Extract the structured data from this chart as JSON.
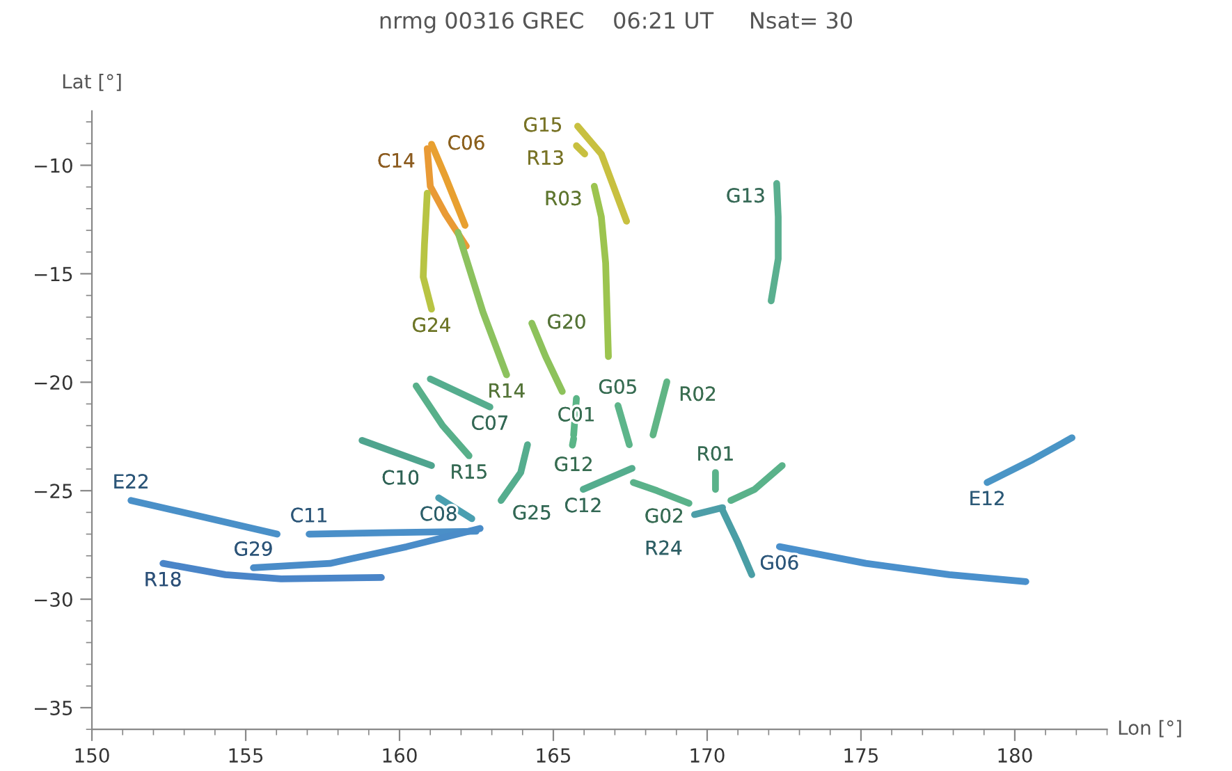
{
  "chart_data": {
    "type": "line",
    "title": "nrmg 00316 GREC    06:21 UT     Nsat= 30",
    "xlabel": "Lon [°]",
    "ylabel": "Lat [°]",
    "xlim": [
      150,
      183
    ],
    "ylim": [
      -36,
      -7.5
    ],
    "xticks": [
      150,
      155,
      160,
      165,
      170,
      175,
      180
    ],
    "yticks": [
      -35,
      -30,
      -25,
      -20,
      -15,
      -10
    ],
    "grid": false,
    "series": [
      {
        "name": "C06",
        "color": "#e8a030",
        "x": [
          161.04,
          161.49,
          162.13
        ],
        "values": [
          -9.03,
          -10.52,
          -12.77
        ]
      },
      {
        "name": "C14",
        "color": "#e99a35",
        "x": [
          160.9,
          161.0,
          161.49,
          162.17
        ],
        "values": [
          -9.23,
          -10.97,
          -12.25,
          -13.73
        ]
      },
      {
        "name": "G24",
        "color": "#b8c443",
        "x": [
          161.04,
          160.77,
          160.81,
          160.9
        ],
        "values": [
          -16.63,
          -15.15,
          -13.67,
          -11.29
        ]
      },
      {
        "name": "R14",
        "color": "#8cc25e",
        "x": [
          163.48,
          162.71,
          161.9
        ],
        "values": [
          -19.66,
          -16.76,
          -13.09
        ]
      },
      {
        "name": "G15",
        "color": "#c8c040",
        "x": [
          165.79,
          166.56,
          167.38
        ],
        "values": [
          -8.2,
          -9.48,
          -12.58
        ]
      },
      {
        "name": "R13",
        "color": "#c8c040",
        "x": [
          165.75,
          166.02
        ],
        "values": [
          -9.1,
          -9.48
        ]
      },
      {
        "name": "R03",
        "color": "#9cc44f",
        "x": [
          166.33,
          166.56,
          166.7,
          166.79
        ],
        "values": [
          -10.97,
          -12.38,
          -14.51,
          -18.82
        ]
      },
      {
        "name": "G13",
        "color": "#5aaf8f",
        "x": [
          172.26,
          172.31,
          172.31,
          172.08
        ],
        "values": [
          -10.84,
          -12.38,
          -14.31,
          -16.25
        ]
      },
      {
        "name": "G20",
        "color": "#8dc25b",
        "x": [
          164.3,
          164.75,
          165.29
        ],
        "values": [
          -17.28,
          -18.82,
          -20.43
        ]
      },
      {
        "name": "R02",
        "color": "#60b585",
        "x": [
          168.69,
          168.24
        ],
        "values": [
          -19.98,
          -22.43
        ]
      },
      {
        "name": "C01",
        "color": "#5bb587",
        "x": [
          165.75,
          165.66
        ],
        "values": [
          -20.75,
          -22.43
        ]
      },
      {
        "name": "G05",
        "color": "#5db58a",
        "x": [
          167.1,
          167.47
        ],
        "values": [
          -21.08,
          -22.88
        ]
      },
      {
        "name": "G12",
        "color": "#5bb587",
        "x": [
          165.66,
          165.62
        ],
        "values": [
          -22.6,
          -22.9
        ]
      },
      {
        "name": "C07",
        "color": "#55ad8e",
        "x": [
          162.94,
          161.0
        ],
        "values": [
          -21.14,
          -19.85
        ]
      },
      {
        "name": "R15",
        "color": "#58b08a",
        "x": [
          162.26,
          161.4,
          160.54
        ],
        "values": [
          -23.39,
          -22.0,
          -20.17
        ]
      },
      {
        "name": "C10",
        "color": "#4fa48e",
        "x": [
          161.04,
          158.78
        ],
        "values": [
          -23.84,
          -22.68
        ]
      },
      {
        "name": "C08",
        "color": "#4a9fb0",
        "x": [
          161.27,
          162.35
        ],
        "values": [
          -25.33,
          -26.29
        ]
      },
      {
        "name": "G25",
        "color": "#55ad8e",
        "x": [
          163.3,
          163.94,
          164.16
        ],
        "values": [
          -25.45,
          -24.16,
          -22.88
        ]
      },
      {
        "name": "E22",
        "color": "#4a90c8",
        "x": [
          151.27,
          153.67,
          156.02
        ],
        "values": [
          -25.45,
          -26.23,
          -27.0
        ]
      },
      {
        "name": "C11",
        "color": "#4a8fc8",
        "x": [
          157.06,
          159.77,
          162.49
        ],
        "values": [
          -27.0,
          -26.93,
          -26.87
        ]
      },
      {
        "name": "G29",
        "color": "#4a8cc8",
        "x": [
          155.25,
          157.74,
          160.23,
          162.62
        ],
        "values": [
          -28.55,
          -28.35,
          -27.58,
          -26.74
        ]
      },
      {
        "name": "R18",
        "color": "#4a85c8",
        "x": [
          152.31,
          154.34,
          156.15,
          159.41
        ],
        "values": [
          -28.35,
          -28.87,
          -29.06,
          -29.0
        ]
      },
      {
        "name": "C12",
        "color": "#55ad8e",
        "x": [
          165.97,
          167.56
        ],
        "values": [
          -24.94,
          -23.97
        ]
      },
      {
        "name": "G02",
        "color": "#5ab28a",
        "x": [
          167.6,
          168.37,
          169.41
        ],
        "values": [
          -24.62,
          -25.0,
          -25.58
        ]
      },
      {
        "name": "R01",
        "color": "#5ab28a",
        "x": [
          170.27,
          170.27
        ],
        "values": [
          -24.16,
          -24.94
        ]
      },
      {
        "color": "#5ab28a",
        "x": [
          170.77,
          171.54,
          172.44
        ],
        "values": [
          -25.45,
          -24.94,
          -23.84
        ]
      },
      {
        "name": "R24",
        "color": "#4d9ea8",
        "x": [
          169.59,
          170.5
        ],
        "values": [
          -26.1,
          -25.78
        ]
      },
      {
        "color": "#4a9ea5",
        "x": [
          170.5,
          171.0,
          171.45
        ],
        "values": [
          -25.9,
          -27.39,
          -28.87
        ]
      },
      {
        "name": "G06",
        "color": "#4a90cc",
        "x": [
          172.35,
          175.16,
          177.87,
          180.36
        ],
        "values": [
          -27.58,
          -28.35,
          -28.87,
          -29.19
        ]
      },
      {
        "name": "E12",
        "color": "#4a95c6",
        "x": [
          179.1,
          180.59,
          181.86
        ],
        "values": [
          -24.62,
          -23.56,
          -22.56
        ]
      }
    ]
  }
}
